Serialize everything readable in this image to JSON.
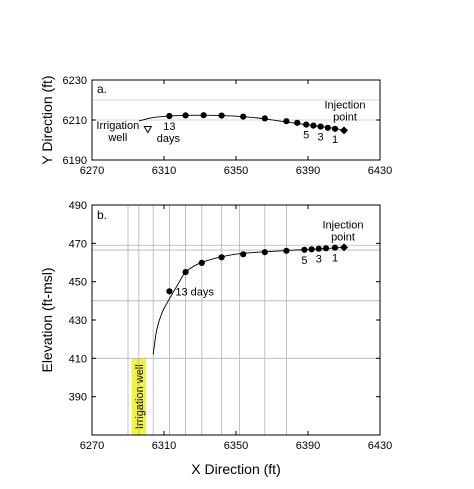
{
  "chart_data": [
    {
      "panel_label": "a.",
      "type": "line",
      "xlabel": "",
      "ylabel": "Y Direction (ft)",
      "xlim": [
        6270,
        6430
      ],
      "ylim": [
        6190,
        6230
      ],
      "xticks": [
        6270,
        6310,
        6350,
        6390,
        6430
      ],
      "yticks": [
        6190,
        6210,
        6230
      ],
      "gridlines_y": [
        6210,
        6220
      ],
      "track_line": {
        "x": [
          6296,
          6304,
          6313,
          6322,
          6332,
          6342,
          6352,
          6362,
          6372,
          6382,
          6389,
          6395,
          6400,
          6405,
          6410
        ],
        "y": [
          6209.5,
          6211.2,
          6212.0,
          6212.3,
          6212.4,
          6212.2,
          6211.8,
          6211.0,
          6209.8,
          6208.5,
          6207.7,
          6207.0,
          6206.4,
          6205.8,
          6204.8
        ]
      },
      "points": {
        "x": [
          6313,
          6322,
          6332,
          6342,
          6354,
          6366,
          6378,
          6384,
          6389,
          6393,
          6397,
          6401,
          6405
        ],
        "y": [
          6212.0,
          6212.3,
          6212.4,
          6212.2,
          6211.7,
          6210.8,
          6209.4,
          6208.6,
          6207.7,
          6207.2,
          6206.7,
          6206.1,
          6205.6
        ]
      },
      "irrigation_well": {
        "x": 6301,
        "y": 6205.5,
        "label_line1": "Irrigation",
        "label_line2": "well"
      },
      "injection_point": {
        "x": 6410,
        "y": 6204.8,
        "label_line1": "Injection",
        "label_line2": "point"
      },
      "annotations": {
        "days_number": "13",
        "days_word": "days",
        "n5": "5",
        "n3": "3",
        "n1": "1"
      }
    },
    {
      "panel_label": "b.",
      "type": "line",
      "xlabel": "X Direction (ft)",
      "ylabel": "Elevation (ft-msl)",
      "xlim": [
        6270,
        6430
      ],
      "ylim": [
        370,
        490
      ],
      "xticks": [
        6270,
        6310,
        6350,
        6390,
        6430
      ],
      "yticks": [
        390,
        410,
        430,
        450,
        470,
        490
      ],
      "gridlines_x": [
        6290,
        6296,
        6304,
        6313,
        6322,
        6331,
        6342,
        6352,
        6366,
        6378
      ],
      "gridlines_y": [
        410,
        440,
        466.5,
        469
      ],
      "track_line": {
        "x": [
          6304,
          6306,
          6309,
          6313,
          6318,
          6322,
          6328,
          6334,
          6342,
          6352,
          6366,
          6378,
          6389,
          6400,
          6410
        ],
        "y": [
          412,
          425,
          434,
          441,
          449,
          455,
          458.8,
          461.0,
          463.0,
          464.6,
          465.6,
          466.2,
          466.8,
          467.3,
          467.9
        ]
      },
      "points": {
        "x": [
          6313,
          6322,
          6331,
          6342,
          6354,
          6366,
          6378,
          6388,
          6392,
          6396,
          6400,
          6405
        ],
        "y": [
          445,
          455,
          459.8,
          462.7,
          464.3,
          465.4,
          466.1,
          466.6,
          466.9,
          467.2,
          467.4,
          467.7
        ]
      },
      "irrigation_well": {
        "x_from": 6292,
        "x_to": 6300,
        "y_from": 370,
        "y_to": 410,
        "label": "Irrigation well",
        "fill": "#f4f430"
      },
      "injection_point": {
        "x": 6410,
        "y": 467.9,
        "label_line1": "Injection",
        "label_line2": "point"
      },
      "annotations": {
        "days_label": "13 days",
        "n5": "5",
        "n3": "3",
        "n1": "1"
      }
    }
  ]
}
